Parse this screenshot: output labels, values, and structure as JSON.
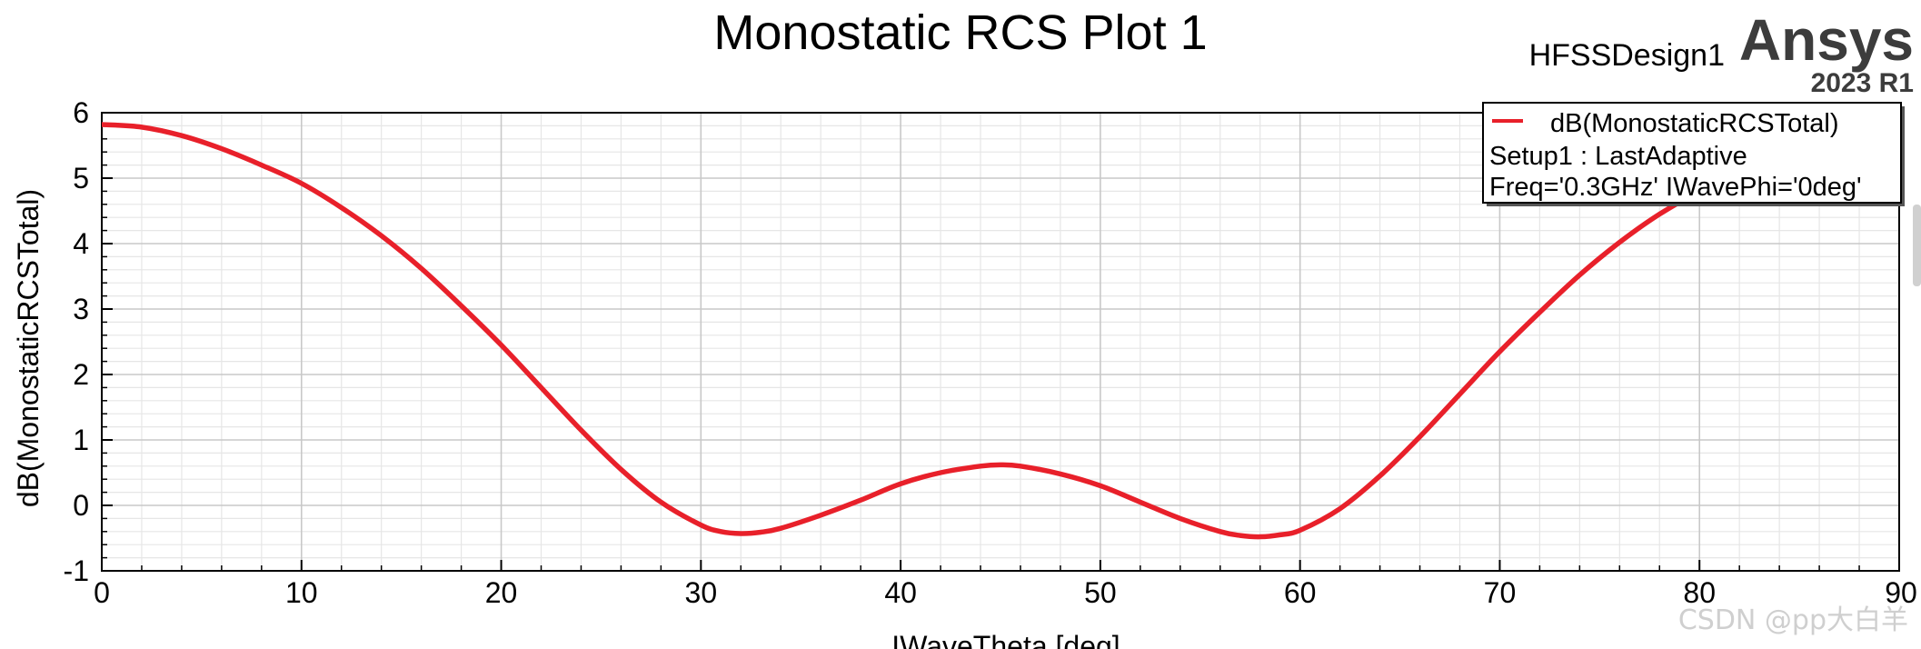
{
  "header": {
    "title": "Monostatic RCS Plot 1",
    "design_name": "HFSSDesign1",
    "brand": "Ansys",
    "version": "2023 R1"
  },
  "watermark": "CSDN @pp大白羊",
  "colors": {
    "series": "#e8202a",
    "grid_major": "#c8c8c8",
    "grid_minor": "#e6e6e6",
    "axes": "#000000",
    "background": "#ffffff"
  },
  "chart_data": {
    "type": "line",
    "title": "Monostatic RCS Plot 1",
    "xlabel": "IWaveTheta [deg]",
    "ylabel": "dB(MonostaticRCSTotal)",
    "xlim": [
      0,
      90
    ],
    "ylim": [
      -1,
      6
    ],
    "xticks": [
      "0",
      "10",
      "20",
      "30",
      "40",
      "50",
      "60",
      "70",
      "80",
      "90"
    ],
    "yticks": [
      "-1",
      "0",
      "1",
      "2",
      "3",
      "4",
      "5",
      "6"
    ],
    "grid": true,
    "legend_position": "top-right",
    "legend": {
      "entry": "dB(MonostaticRCSTotal)",
      "line2": "Setup1 : LastAdaptive",
      "line3": "Freq='0.3GHz' IWavePhi='0deg'"
    },
    "series": [
      {
        "name": "dB(MonostaticRCSTotal)",
        "x": [
          0,
          2,
          4,
          6,
          8,
          10,
          12,
          14,
          16,
          18,
          20,
          22,
          24,
          26,
          28,
          30,
          31,
          32,
          33,
          34,
          36,
          38,
          40,
          42,
          44,
          45,
          46,
          48,
          50,
          52,
          54,
          56,
          57,
          58,
          59,
          60,
          62,
          64,
          66,
          68,
          70,
          72,
          74,
          76,
          78,
          80,
          82,
          84,
          86,
          88,
          90
        ],
        "y": [
          5.82,
          5.78,
          5.65,
          5.45,
          5.2,
          4.92,
          4.55,
          4.12,
          3.62,
          3.05,
          2.45,
          1.8,
          1.15,
          0.55,
          0.05,
          -0.3,
          -0.4,
          -0.43,
          -0.41,
          -0.35,
          -0.15,
          0.08,
          0.33,
          0.5,
          0.6,
          0.62,
          0.6,
          0.48,
          0.3,
          0.05,
          -0.2,
          -0.4,
          -0.46,
          -0.48,
          -0.45,
          -0.38,
          -0.05,
          0.45,
          1.05,
          1.7,
          2.35,
          2.95,
          3.52,
          4.02,
          4.45,
          4.8,
          5.1,
          5.35,
          5.55,
          5.7,
          5.78
        ]
      }
    ]
  }
}
